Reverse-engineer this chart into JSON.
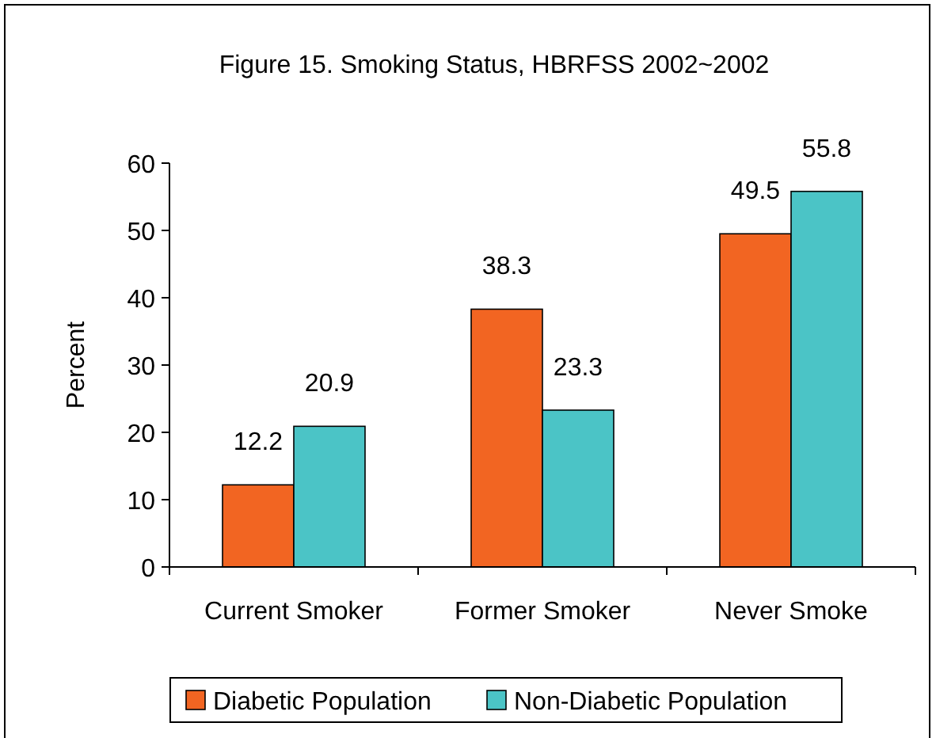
{
  "chart_data": {
    "type": "bar",
    "title": "Figure 15.  Smoking Status, HBRFSS 2002~2002",
    "ylabel": "Percent",
    "categories": [
      "Current Smoker",
      "Former Smoker",
      "Never Smoke"
    ],
    "series": [
      {
        "name": "Diabetic Population",
        "color": "#f26522",
        "values": [
          12.2,
          38.3,
          49.5
        ]
      },
      {
        "name": "Non-Diabetic Population",
        "color": "#4bc4c6",
        "values": [
          20.9,
          23.3,
          55.8
        ]
      }
    ],
    "ylim": [
      0,
      60
    ],
    "yticks": [
      0,
      10,
      20,
      30,
      40,
      50,
      60
    ],
    "grid": false,
    "legend": "bottom",
    "data_labels": true
  }
}
